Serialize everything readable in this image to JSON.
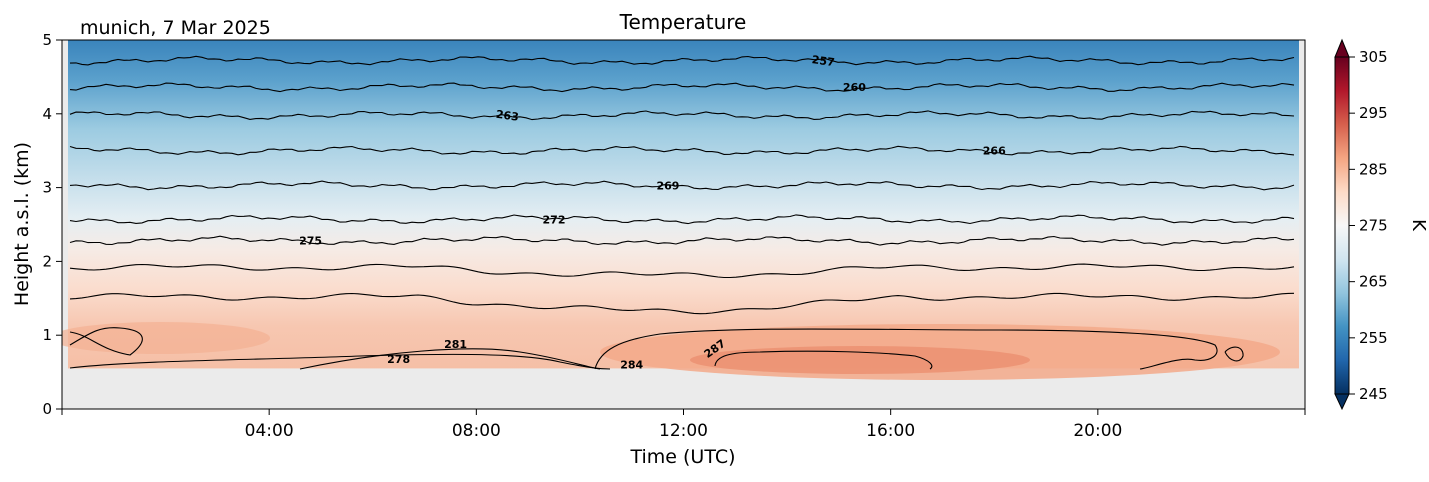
{
  "chart_data": {
    "type": "heatmap",
    "title": "Temperature",
    "subtitle": "munich, 7 Mar 2025",
    "xlabel": "Time (UTC)",
    "ylabel": "Height a.s.l. (km)",
    "x_range_hours": [
      0,
      24
    ],
    "x_ticks": [
      {
        "hour": 4,
        "label": "04:00"
      },
      {
        "hour": 8,
        "label": "08:00"
      },
      {
        "hour": 12,
        "label": "12:00"
      },
      {
        "hour": 16,
        "label": "16:00"
      },
      {
        "hour": 20,
        "label": "20:00"
      }
    ],
    "ylim": [
      0,
      5
    ],
    "y_ticks": [
      {
        "value": 0,
        "label": "0"
      },
      {
        "value": 1,
        "label": "1"
      },
      {
        "value": 2,
        "label": "2"
      },
      {
        "value": 3,
        "label": "3"
      },
      {
        "value": 4,
        "label": "4"
      },
      {
        "value": 5,
        "label": "5"
      }
    ],
    "data_height_range_km": [
      0.55,
      5.0
    ],
    "colorbar": {
      "label": "K",
      "range": [
        245,
        305
      ],
      "ticks": [
        {
          "value": 245,
          "label": "245"
        },
        {
          "value": 255,
          "label": "255"
        },
        {
          "value": 265,
          "label": "265"
        },
        {
          "value": 275,
          "label": "275"
        },
        {
          "value": 285,
          "label": "285"
        },
        {
          "value": 295,
          "label": "295"
        },
        {
          "value": 305,
          "label": "305"
        }
      ],
      "extend": "both",
      "colors": [
        "#053061",
        "#2166ac",
        "#4393c3",
        "#92c5de",
        "#d1e5f0",
        "#f7f7f7",
        "#fddbc7",
        "#f4a582",
        "#d6604d",
        "#b2182b",
        "#67001f"
      ]
    },
    "no_data_color": "#ebebeb",
    "contour_lines": [
      {
        "value": 257,
        "label": "257",
        "height_km": 4.72,
        "label_hour": 14.7
      },
      {
        "value": 260,
        "label": "260",
        "height_km": 4.36,
        "label_hour": 15.3
      },
      {
        "value": 263,
        "label": "263",
        "height_km": 3.98,
        "label_hour": 8.6
      },
      {
        "value": 266,
        "label": "266",
        "height_km": 3.5,
        "label_hour": 18.0
      },
      {
        "value": 269,
        "label": "269",
        "height_km": 3.03,
        "label_hour": 11.7
      },
      {
        "value": 272,
        "label": "272",
        "height_km": 2.57,
        "label_hour": 9.5
      },
      {
        "value": 275,
        "label": "275",
        "height_km": 2.28,
        "label_hour": 4.8
      },
      {
        "value": 278,
        "label": "278",
        "height_km": 0.68,
        "label_hour": 6.5
      },
      {
        "value": 281,
        "label": "281",
        "height_km": 0.88,
        "label_hour": 7.6
      },
      {
        "value": 284,
        "label": "284",
        "height_km": 0.6,
        "label_hour": 11.0
      },
      {
        "value": 287,
        "label": "287",
        "height_km": 0.82,
        "label_hour": 12.6
      }
    ]
  }
}
